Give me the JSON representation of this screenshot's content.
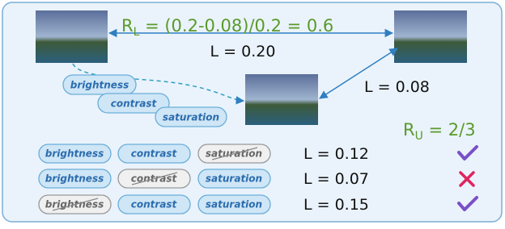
{
  "title": {
    "r": "R",
    "sub": "L",
    "rest": " = (0.2-0.08)/0.2 = 0.6"
  },
  "loss_top": "L = 0.20",
  "loss_mid": "L = 0.08",
  "augments": [
    "brightness",
    "contrast",
    "saturation"
  ],
  "ratio": {
    "r": "R",
    "sub": "U",
    "rest": " = 2/3"
  },
  "rows": [
    {
      "pills": [
        "brightness",
        "contrast",
        "saturation"
      ],
      "loss": "L = 0.12"
    },
    {
      "pills": [
        "brightness",
        "contrast",
        "saturation"
      ],
      "loss": "L = 0.07"
    },
    {
      "pills": [
        "brightness",
        "contrast",
        "saturation"
      ],
      "loss": "L = 0.15"
    }
  ]
}
